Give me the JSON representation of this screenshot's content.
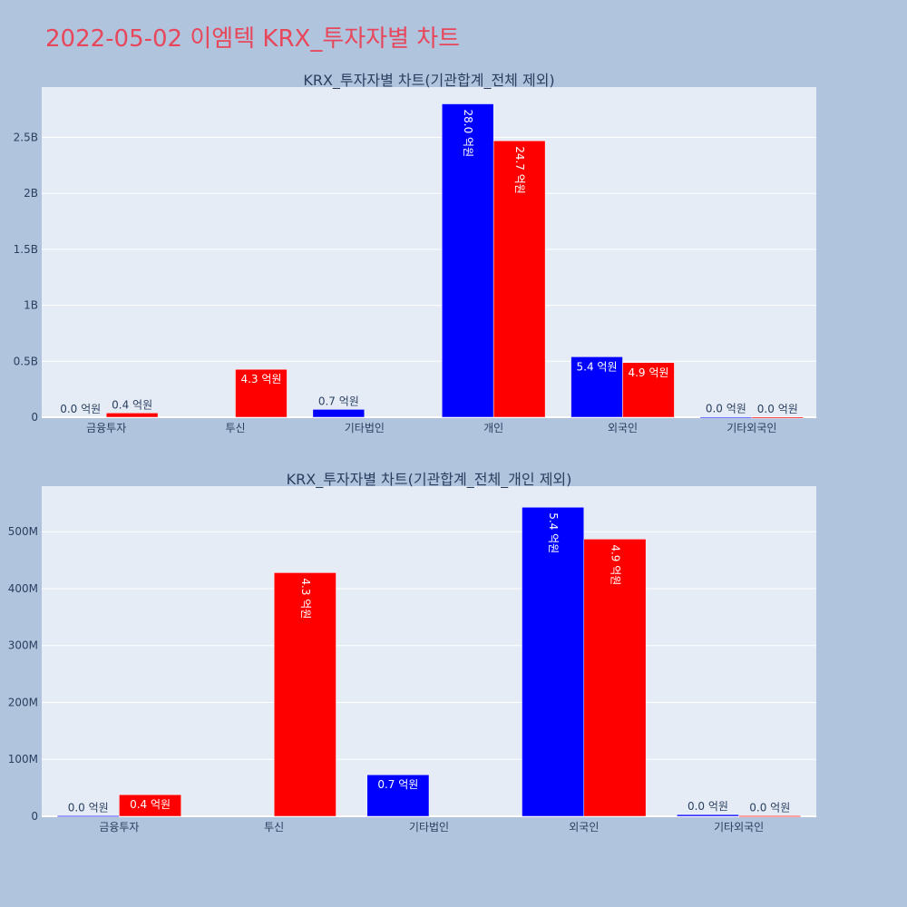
{
  "page": {
    "title": "2022-05-02 이엠텍 KRX_투자자별 차트"
  },
  "colors": {
    "background": "#b0c4de",
    "plot_bg": "#e5ecf6",
    "grid": "#ffffff",
    "series_buy": "#0000ff",
    "series_sell": "#ff0000",
    "title": "#e8465a",
    "axis_text": "#2a3f5f"
  },
  "chart_data": [
    {
      "type": "bar",
      "title": "KRX_투자자별 차트(기관합계_전체 제외)",
      "categories": [
        "금융투자",
        "투신",
        "기타법인",
        "개인",
        "외국인",
        "기타외국인"
      ],
      "series": [
        {
          "color": "#0000ff",
          "values": [
            0,
            0,
            70000000,
            2800000000,
            540000000,
            3000000
          ],
          "labels": [
            "0.0 억원",
            "",
            "0.7 억원",
            "28.0 억원",
            "5.4 억원",
            "0.0 억원"
          ]
        },
        {
          "color": "#ff0000",
          "values": [
            38000000,
            428000000,
            0,
            2470000000,
            488000000,
            1000000
          ],
          "labels": [
            "0.4 억원",
            "4.3 억원",
            "",
            "24.7 억원",
            "4.9 억원",
            "0.0 억원"
          ]
        }
      ],
      "ylim": [
        0,
        2950000000
      ],
      "yticks": [
        0,
        500000000,
        1000000000,
        1500000000,
        2000000000,
        2500000000
      ],
      "ytick_labels": [
        "0",
        "0.5B",
        "1B",
        "1.5B",
        "2B",
        "2.5B"
      ],
      "grid": true
    },
    {
      "type": "bar",
      "title": "KRX_투자자별 차트(기관합계_전체_개인 제외)",
      "categories": [
        "금융투자",
        "투신",
        "기타법인",
        "외국인",
        "기타외국인"
      ],
      "series": [
        {
          "color": "#0000ff",
          "values": [
            1000000,
            0,
            73000000,
            543000000,
            3000000
          ],
          "labels": [
            "0.0 억원",
            "",
            "0.7 억원",
            "5.4 억원",
            "0.0 억원"
          ]
        },
        {
          "color": "#ff0000",
          "values": [
            38000000,
            428000000,
            0,
            487000000,
            1000000
          ],
          "labels": [
            "0.4 억원",
            "4.3 억원",
            "",
            "4.9 억원",
            "0.0 억원"
          ]
        }
      ],
      "ylim": [
        0,
        580000000
      ],
      "yticks": [
        0,
        100000000,
        200000000,
        300000000,
        400000000,
        500000000
      ],
      "ytick_labels": [
        "0",
        "100M",
        "200M",
        "300M",
        "400M",
        "500M"
      ],
      "grid": true
    }
  ]
}
